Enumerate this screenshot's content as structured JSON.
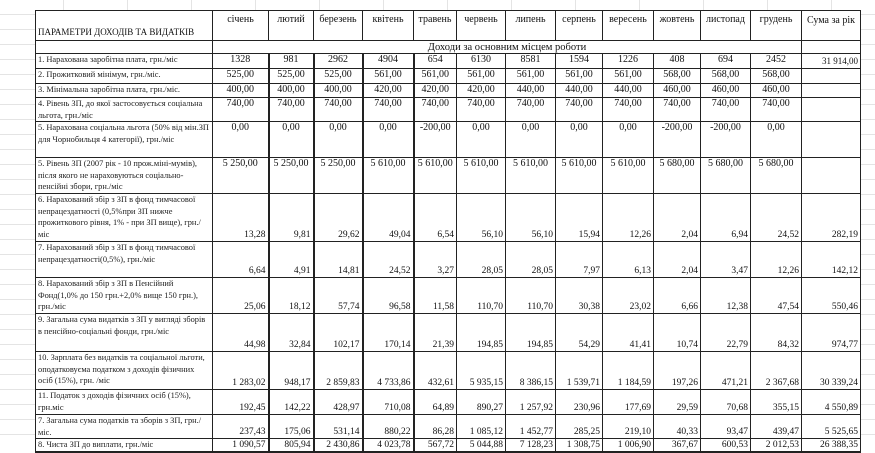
{
  "header": {
    "params_label": "ПАРАМЕТРИ ДОХОДІВ ТА ВИДАТКІВ",
    "months": [
      "січень",
      "лютий",
      "березень",
      "квітень",
      "травень",
      "червень",
      "липень",
      "серпень",
      "вересень",
      "жовтень",
      "листопад",
      "грудень"
    ],
    "total_label": "Сума за рік"
  },
  "section_title": "Доходи за основним місцем роботи",
  "rows": [
    {
      "label": "1. Нарахована заробітна плата, грн./міс",
      "values": [
        "1328",
        "981",
        "2962",
        "4904",
        "654",
        "6130",
        "8581",
        "1594",
        "1226",
        "408",
        "694",
        "2452"
      ],
      "total": "31 914,00",
      "align": "top"
    },
    {
      "label": "2. Прожитковий мінімум, грн./міс.",
      "values": [
        "525,00",
        "525,00",
        "525,00",
        "561,00",
        "561,00",
        "561,00",
        "561,00",
        "561,00",
        "561,00",
        "568,00",
        "568,00",
        "568,00"
      ],
      "total": "",
      "align": "top"
    },
    {
      "label": "3. Мінімальна заробітна плата, грн./міс.",
      "values": [
        "400,00",
        "400,00",
        "400,00",
        "420,00",
        "420,00",
        "420,00",
        "440,00",
        "440,00",
        "440,00",
        "460,00",
        "460,00",
        "460,00"
      ],
      "total": "",
      "align": "top"
    },
    {
      "label": "4. Рівень ЗП, до якої застосовується соціальна льгота, грн./міс",
      "values": [
        "740,00",
        "740,00",
        "740,00",
        "740,00",
        "740,00",
        "740,00",
        "740,00",
        "740,00",
        "740,00",
        "740,00",
        "740,00",
        "740,00"
      ],
      "total": "",
      "align": "top"
    },
    {
      "label": "5. Нарахована соціальна льгота (50% від мін.ЗП для Чорнобильця 4 категорії), грн./міс",
      "values": [
        "0,00",
        "0,00",
        "0,00",
        "0,00",
        "-200,00",
        "0,00",
        "0,00",
        "0,00",
        "0,00",
        "-200,00",
        "-200,00",
        "0,00"
      ],
      "total": "",
      "align": "top"
    },
    {
      "label": "5. Рівень ЗП (2007 рік - 10 прож.міні-мумів), після якого не нараховуються соціально-пенсійні збори, грн./міс",
      "values": [
        "5 250,00",
        "5 250,00",
        "5 250,00",
        "5 610,00",
        "5 610,00",
        "5 610,00",
        "5 610,00",
        "5 610,00",
        "5 610,00",
        "5 680,00",
        "5 680,00",
        "5 680,00"
      ],
      "total": "",
      "align": "top"
    },
    {
      "label": "6. Нарахований збір з ЗП в фонд тимчасової непрацездатності (0,5%при ЗП нижче прожиткового рівня, 1% - при ЗП вище), грн./міс",
      "values": [
        "13,28",
        "9,81",
        "29,62",
        "49,04",
        "6,54",
        "56,10",
        "56,10",
        "15,94",
        "12,26",
        "2,04",
        "6,94",
        "24,52"
      ],
      "total": "282,19",
      "align": "bottom"
    },
    {
      "label": "7. Нарахований збір з ЗП в фонд тимчасової непрацездатності(0,5%), грн./міс",
      "values": [
        "6,64",
        "4,91",
        "14,81",
        "24,52",
        "3,27",
        "28,05",
        "28,05",
        "7,97",
        "6,13",
        "2,04",
        "3,47",
        "12,26"
      ],
      "total": "142,12",
      "align": "bottom"
    },
    {
      "label": "8. Нарахований збір з ЗП в Пенсійний Фонд(1,0% до 150 грн.+2,0% вище 150 грн.), грн./міс",
      "values": [
        "25,06",
        "18,12",
        "57,74",
        "96,58",
        "11,58",
        "110,70",
        "110,70",
        "30,38",
        "23,02",
        "6,66",
        "12,38",
        "47,54"
      ],
      "total": "550,46",
      "align": "bottom"
    },
    {
      "label": "9. Загальна сума видатків з ЗП у вигляді зборів в пенсійно-соціальні фонди, грн./міс",
      "values": [
        "44,98",
        "32,84",
        "102,17",
        "170,14",
        "21,39",
        "194,85",
        "194,85",
        "54,29",
        "41,41",
        "10,74",
        "22,79",
        "84,32"
      ],
      "total": "974,77",
      "align": "bottom"
    },
    {
      "label": "10. Зарплата без видатків та соціальної льготи, оподатковуєма податком з доходів фізичних осіб (15%), грн. /міс",
      "values": [
        "1 283,02",
        "948,17",
        "2 859,83",
        "4 733,86",
        "432,61",
        "5 935,15",
        "8 386,15",
        "1 539,71",
        "1 184,59",
        "197,26",
        "471,21",
        "2 367,68"
      ],
      "total": "30 339,24",
      "align": "bottom"
    },
    {
      "label": "11. Податок з доходів фізичних осіб (15%), грн.міс",
      "values": [
        "192,45",
        "142,22",
        "428,97",
        "710,08",
        "64,89",
        "890,27",
        "1 257,92",
        "230,96",
        "177,69",
        "29,59",
        "70,68",
        "355,15"
      ],
      "total": "4 550,89",
      "align": "bottom"
    },
    {
      "label": "7. Загальна сума податків та зборів з ЗП, грн./міс.",
      "values": [
        "237,43",
        "175,06",
        "531,14",
        "880,22",
        "86,28",
        "1 085,12",
        "1 452,77",
        "285,25",
        "219,10",
        "40,33",
        "93,47",
        "439,47"
      ],
      "total": "5 525,65",
      "align": "bottom"
    },
    {
      "label": "8. Чиста ЗП до виплати, грн./міс",
      "values": [
        "1 090,57",
        "805,94",
        "2 430,86",
        "4 023,78",
        "567,72",
        "5 044,88",
        "7 128,23",
        "1 308,75",
        "1 006,90",
        "367,67",
        "600,53",
        "2 012,53"
      ],
      "total": "26 388,35",
      "align": "bottom"
    }
  ]
}
